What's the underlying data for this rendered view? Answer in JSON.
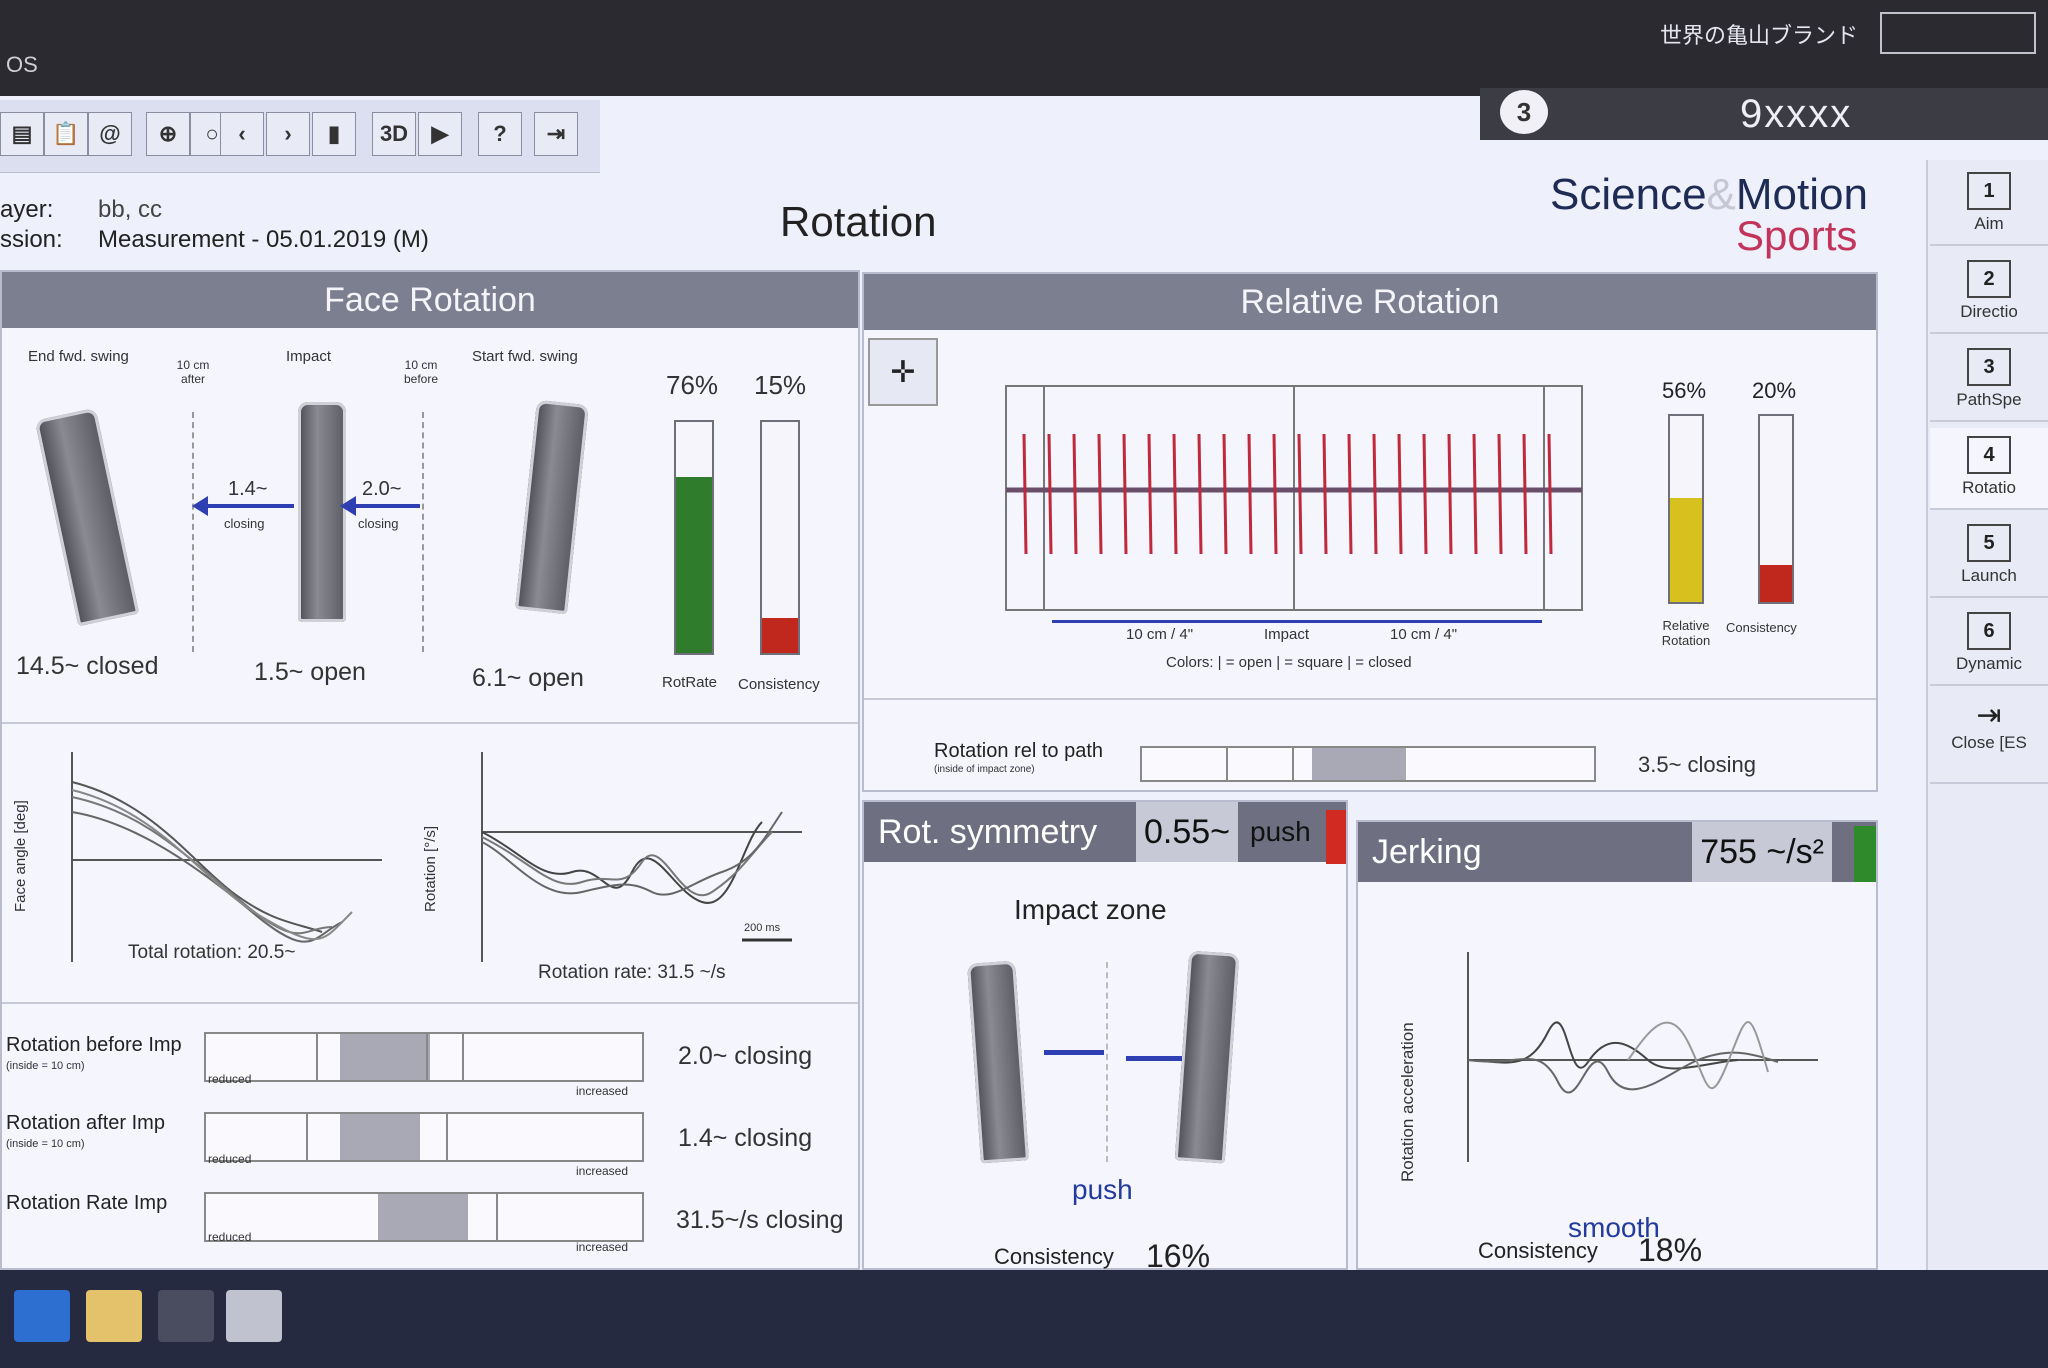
{
  "window": {
    "app_title": "OS",
    "brand_jp": "世界の亀山ブランド",
    "user_badge": "3",
    "user_name": "9xxxx"
  },
  "toolbar": {
    "btn_3d": "3D",
    "btn_help": "?"
  },
  "header": {
    "player_label": "ayer:",
    "player_value": "bb, cc",
    "session_label": "ssion:",
    "session_value": "Measurement - 05.01.2019 (M)",
    "page_title": "Rotation",
    "logo_science": "Science",
    "logo_amp": "&",
    "logo_motion": "Motion",
    "logo_sports": "Sports"
  },
  "face_rotation": {
    "title": "Face Rotation",
    "lbl_end": "End fwd. swing",
    "lbl_after": "10 cm after",
    "lbl_impact": "Impact",
    "lbl_before": "10 cm before",
    "lbl_start": "Start fwd. swing",
    "arrow1_val": "1.4~",
    "arrow1_sub": "closing",
    "arrow2_val": "2.0~",
    "arrow2_sub": "closing",
    "val_end": "14.5~ closed",
    "val_impact": "1.5~ open",
    "val_start": "6.1~ open",
    "rotrate_pct": "76%",
    "consistency_pct": "15%",
    "rotrate_label": "RotRate",
    "consistency_label": "Consistency",
    "rotrate_level": 0.76,
    "consistency_level": 0.15,
    "rotrate_color": "#2f7d2c",
    "consistency_color": "#c0281e"
  },
  "charts_left": {
    "left_ylabel": "Face angle [deg]",
    "left_caption": "Total rotation: 20.5~",
    "right_ylabel": "Rotation [°/s]",
    "right_caption": "Rotation rate: 31.5 ~/s",
    "scale_text": "200 ms"
  },
  "metrics": [
    {
      "label": "Rotation before Imp",
      "sub": "(inside = 10 cm)",
      "value": "2.0~ closing",
      "low": "reduced",
      "high": "increased"
    },
    {
      "label": "Rotation after Imp",
      "sub": "(inside = 10 cm)",
      "value": "1.4~ closing",
      "low": "reduced",
      "high": "increased"
    },
    {
      "label": "Rotation Rate Imp",
      "sub": "",
      "value": "31.5~/s closing",
      "low": "reduced",
      "high": "increased"
    }
  ],
  "relative_rotation": {
    "title": "Relative Rotation",
    "left_dist": "10 cm / 4\"",
    "impact": "Impact",
    "right_dist": "10 cm / 4\"",
    "colors_legend": "Colors:  | = open   | = square | = closed",
    "rel_pct": "56%",
    "cons_pct": "20%",
    "rel_label": "Relative Rotation",
    "cons_label": "Consistency",
    "rel_level": 0.56,
    "cons_level": 0.2,
    "rel_color": "#d6c11f",
    "cons_color": "#c0281e",
    "path_label": "Rotation rel to path",
    "path_sub": "(inside of impact zone)",
    "path_value": "3.5~ closing"
  },
  "rot_symmetry": {
    "title": "Rot. symmetry",
    "value": "0.55~",
    "dir": "push",
    "zone_title": "Impact zone",
    "verdict": "push",
    "consistency_label": "Consistency",
    "consistency_value": "16%",
    "consistency_level": 0.16,
    "indicator_color": "#d02a22"
  },
  "jerking": {
    "title": "Jerking",
    "value": "755 ~/s²",
    "ylabel": "Rotation acceleration",
    "verdict": "smooth",
    "consistency_label": "Consistency",
    "consistency_value": "18%",
    "consistency_level": 0.18,
    "indicator_color": "#2f8a2c"
  },
  "side_tabs": [
    {
      "num": "1",
      "label": "Aim"
    },
    {
      "num": "2",
      "label": "Directio"
    },
    {
      "num": "3",
      "label": "PathSpe"
    },
    {
      "num": "4",
      "label": "Rotatio"
    },
    {
      "num": "5",
      "label": "Launch"
    },
    {
      "num": "6",
      "label": "Dynamic"
    },
    {
      "num": "",
      "label": "Close [ES"
    }
  ]
}
